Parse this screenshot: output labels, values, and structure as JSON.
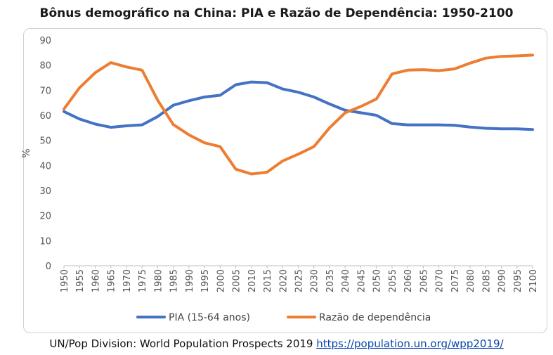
{
  "title": "Bônus demográfico na China: PIA e Razão de Dependência: 1950-2100",
  "source": {
    "text": "UN/Pop Division: World Population Prospects 2019",
    "link": "https://population.un.org/wpp2019/"
  },
  "chart_data": {
    "type": "line",
    "title": "Bônus demográfico na China: PIA e Razão de Dependência: 1950-2100",
    "xlabel": "",
    "ylabel": "%",
    "ylim": [
      0,
      90
    ],
    "yticks": [
      "0",
      "10",
      "20",
      "30",
      "40",
      "50",
      "60",
      "70",
      "80",
      "90"
    ],
    "xlim": [
      1950,
      2100
    ],
    "xticks": [
      "1950",
      "1955",
      "1960",
      "1965",
      "1970",
      "1975",
      "1980",
      "1985",
      "1990",
      "1995",
      "2000",
      "2005",
      "2010",
      "2015",
      "2020",
      "2025",
      "2030",
      "2035",
      "2040",
      "2045",
      "2050",
      "2055",
      "2060",
      "2065",
      "2070",
      "2075",
      "2080",
      "2085",
      "2090",
      "2095",
      "2100"
    ],
    "grid": "none",
    "legend": "bottom",
    "x": [
      1950,
      1955,
      1960,
      1965,
      1970,
      1975,
      1980,
      1985,
      1990,
      1995,
      2000,
      2005,
      2010,
      2015,
      2020,
      2025,
      2030,
      2035,
      2040,
      2045,
      2050,
      2055,
      2060,
      2065,
      2070,
      2075,
      2080,
      2085,
      2090,
      2095,
      2100
    ],
    "series": [
      {
        "name": "PIA (15-64 anos)",
        "color": "#4472c4",
        "values": [
          61.5,
          58.5,
          56.5,
          55.2,
          55.8,
          56.2,
          59.5,
          64.0,
          65.8,
          67.3,
          68.0,
          72.2,
          73.3,
          73.0,
          70.5,
          69.2,
          67.3,
          64.5,
          62.0,
          61.0,
          60.0,
          56.7,
          56.2,
          56.2,
          56.2,
          56.0,
          55.3,
          54.8,
          54.6,
          54.6,
          54.3
        ]
      },
      {
        "name": "Razão de dependência",
        "color": "#ed7d31",
        "values": [
          62.5,
          71.0,
          77.0,
          81.0,
          79.3,
          78.0,
          66.0,
          56.3,
          52.2,
          49.0,
          47.5,
          38.5,
          36.6,
          37.3,
          41.8,
          44.5,
          47.5,
          55.0,
          61.0,
          63.5,
          66.5,
          76.5,
          78.0,
          78.2,
          77.8,
          78.5,
          80.8,
          82.8,
          83.5,
          83.7,
          84.0
        ]
      }
    ]
  }
}
